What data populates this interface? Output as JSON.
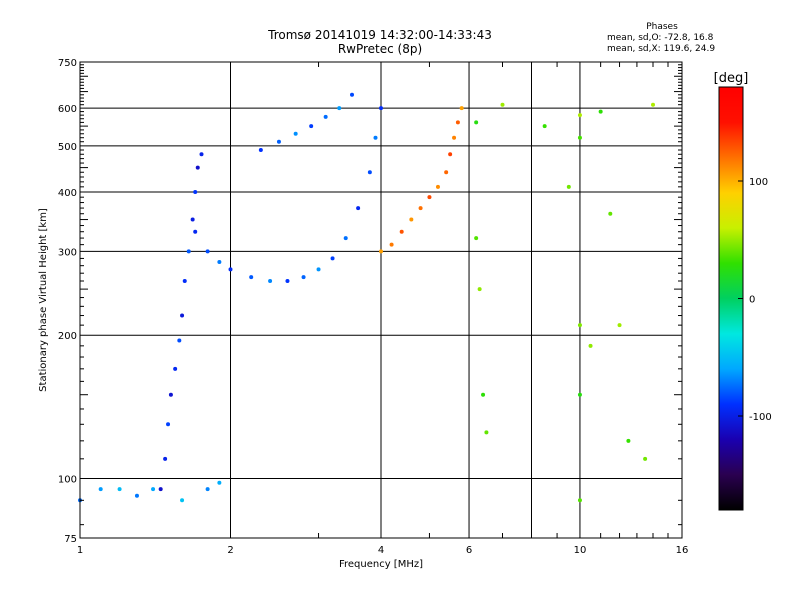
{
  "header": {
    "title_line1": "Tromsø 20141019 14:32:00-14:33:43",
    "title_line2": "RwPretec (8p)",
    "stats_heading": "Phases",
    "stats_line1": "mean, sd,O: -72.8, 16.8",
    "stats_line2": "mean, sd,X: 119.6, 24.9"
  },
  "chart_data": {
    "type": "scatter",
    "xlabel": "Frequency [MHz]",
    "ylabel": "Stationary phase Virtual Height [km]",
    "x_scale": "log",
    "y_scale": "log",
    "xlim": [
      1,
      16
    ],
    "ylim": [
      75,
      750
    ],
    "x_ticks": [
      1,
      2,
      4,
      6,
      8,
      10,
      16
    ],
    "x_tick_labels": [
      "1",
      "2",
      "4",
      "6",
      "",
      "10",
      "16"
    ],
    "y_ticks": [
      75,
      100,
      200,
      300,
      400,
      500,
      600,
      750
    ],
    "y_tick_labels": [
      "75",
      "100",
      "200",
      "300",
      "400",
      "500",
      "600",
      "750"
    ],
    "grid": true,
    "colorbar": {
      "label": "[deg]",
      "range": [
        -180,
        180
      ],
      "ticks": [
        -100,
        0,
        100
      ],
      "tick_labels": [
        "-100",
        "0",
        "100"
      ],
      "colors": [
        "#000000",
        "#2a0050",
        "#1a00b0",
        "#0030ff",
        "#00a8ff",
        "#00e8e0",
        "#00d060",
        "#30e000",
        "#c8f000",
        "#ffd000",
        "#ff7000",
        "#ff1000",
        "#ff0000"
      ]
    },
    "series": [
      {
        "trace": "O-mode low",
        "phase": -95,
        "points": [
          [
            1.45,
            95
          ],
          [
            1.48,
            110
          ],
          [
            1.5,
            130
          ],
          [
            1.52,
            150
          ],
          [
            1.55,
            170
          ],
          [
            1.58,
            195
          ],
          [
            1.6,
            220
          ],
          [
            1.62,
            260
          ],
          [
            1.65,
            300
          ],
          [
            1.68,
            350
          ],
          [
            1.7,
            400
          ],
          [
            1.72,
            450
          ],
          [
            1.75,
            480
          ]
        ]
      },
      {
        "trace": "O-mode main",
        "phase": -80,
        "points": [
          [
            1.7,
            330
          ],
          [
            1.8,
            300
          ],
          [
            1.9,
            285
          ],
          [
            2.0,
            275
          ],
          [
            2.2,
            265
          ],
          [
            2.4,
            260
          ],
          [
            2.6,
            260
          ],
          [
            2.8,
            265
          ],
          [
            3.0,
            275
          ],
          [
            3.2,
            290
          ],
          [
            3.4,
            320
          ],
          [
            3.6,
            370
          ],
          [
            3.8,
            440
          ],
          [
            3.9,
            520
          ],
          [
            4.0,
            600
          ]
        ]
      },
      {
        "trace": "O-mode upper",
        "phase": -75,
        "points": [
          [
            2.3,
            490
          ],
          [
            2.5,
            510
          ],
          [
            2.7,
            530
          ],
          [
            2.9,
            550
          ],
          [
            3.1,
            575
          ],
          [
            3.3,
            600
          ],
          [
            3.5,
            640
          ]
        ]
      },
      {
        "trace": "X-mode",
        "phase": 120,
        "points": [
          [
            4.0,
            300
          ],
          [
            4.2,
            310
          ],
          [
            4.4,
            330
          ],
          [
            4.6,
            350
          ],
          [
            4.8,
            370
          ],
          [
            5.0,
            390
          ],
          [
            5.2,
            410
          ],
          [
            5.4,
            440
          ],
          [
            5.5,
            480
          ],
          [
            5.6,
            520
          ],
          [
            5.7,
            560
          ],
          [
            5.8,
            600
          ]
        ]
      },
      {
        "trace": "E-layer",
        "phase": -60,
        "points": [
          [
            1.0,
            90
          ],
          [
            1.1,
            95
          ],
          [
            1.2,
            95
          ],
          [
            1.3,
            92
          ],
          [
            1.4,
            95
          ],
          [
            1.6,
            90
          ],
          [
            1.8,
            95
          ],
          [
            1.9,
            98
          ]
        ]
      },
      {
        "trace": "scattered",
        "phase": 40,
        "points": [
          [
            6.2,
            560
          ],
          [
            6.2,
            320
          ],
          [
            6.3,
            250
          ],
          [
            6.4,
            150
          ],
          [
            6.5,
            125
          ],
          [
            7.0,
            610
          ],
          [
            8.5,
            550
          ],
          [
            9.5,
            410
          ],
          [
            10.0,
            580
          ],
          [
            10.0,
            520
          ],
          [
            10.0,
            210
          ],
          [
            10.0,
            150
          ],
          [
            10.0,
            90
          ],
          [
            10.5,
            190
          ],
          [
            11.0,
            590
          ],
          [
            11.5,
            360
          ],
          [
            12.0,
            210
          ],
          [
            12.5,
            120
          ],
          [
            13.5,
            110
          ],
          [
            14.0,
            610
          ]
        ]
      }
    ]
  }
}
